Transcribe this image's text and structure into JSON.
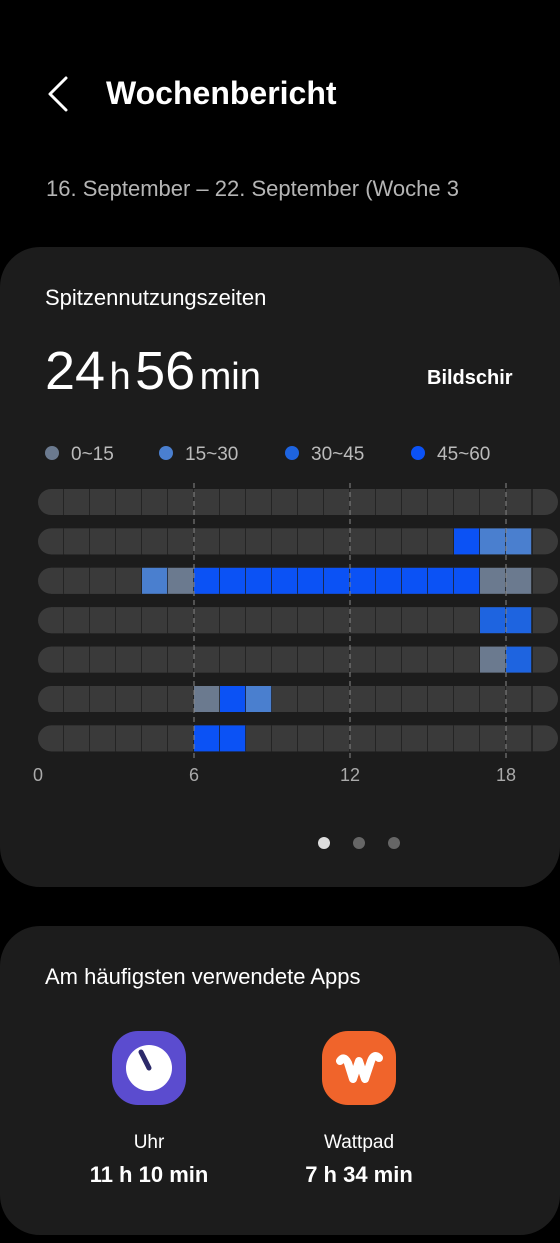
{
  "header": {
    "title": "Wochenbericht",
    "date_range": "16. September – 22. September (Woche 3"
  },
  "peak_card": {
    "title": "Spitzennutzungszeiten",
    "total": {
      "hours": "24",
      "h_unit": "h",
      "minutes": "56",
      "min_unit": "min"
    },
    "side_label": "Bildschir",
    "legend": [
      {
        "label": "0~15",
        "color": "#6b7a8f"
      },
      {
        "label": "15~30",
        "color": "#4a7fcf"
      },
      {
        "label": "30~45",
        "color": "#1e64e0"
      },
      {
        "label": "45~60",
        "color": "#0b52f5"
      }
    ],
    "heatmap": {
      "xticks": [
        0,
        6,
        12,
        18
      ],
      "rows": [
        [
          0,
          0,
          0,
          0,
          0,
          0,
          0,
          0,
          0,
          0,
          0,
          0,
          0,
          0,
          0,
          0,
          0,
          0,
          0
        ],
        [
          0,
          0,
          0,
          0,
          0,
          0,
          0,
          0,
          0,
          0,
          0,
          0,
          0,
          0,
          0,
          0,
          4,
          2,
          2
        ],
        [
          0,
          0,
          0,
          0,
          2,
          1,
          4,
          4,
          4,
          4,
          4,
          4,
          4,
          4,
          4,
          4,
          4,
          1,
          1
        ],
        [
          0,
          0,
          0,
          0,
          0,
          0,
          0,
          0,
          0,
          0,
          0,
          0,
          0,
          0,
          0,
          0,
          0,
          3,
          3
        ],
        [
          0,
          0,
          0,
          0,
          0,
          0,
          0,
          0,
          0,
          0,
          0,
          0,
          0,
          0,
          0,
          0,
          0,
          1,
          3
        ],
        [
          0,
          0,
          0,
          0,
          0,
          0,
          1,
          4,
          2,
          0,
          0,
          0,
          0,
          0,
          0,
          0,
          0,
          0,
          0
        ],
        [
          0,
          0,
          0,
          0,
          0,
          0,
          4,
          4,
          0,
          0,
          0,
          0,
          0,
          0,
          0,
          0,
          0,
          0,
          0
        ]
      ]
    }
  },
  "apps_card": {
    "title": "Am häufigsten verwendete Apps",
    "apps": [
      {
        "name": "Uhr",
        "time": "11 h 10 min"
      },
      {
        "name": "Wattpad",
        "time": "7 h 34 min"
      }
    ]
  }
}
